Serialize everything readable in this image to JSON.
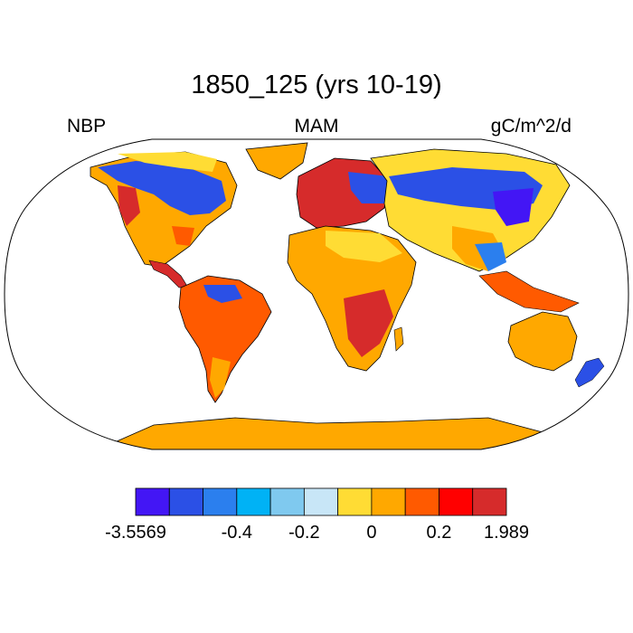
{
  "title": "1850_125 (yrs 10-19)",
  "left_label": "NBP",
  "center_label": "MAM",
  "right_label": "gC/m^2/d",
  "colorbar": {
    "colors": [
      "#4316f5",
      "#2b50e6",
      "#2b7fee",
      "#00b2f5",
      "#7fc9ef",
      "#c8e6f7",
      "#ffdc34",
      "#ffa800",
      "#ff5a00",
      "#ff0000",
      "#d62b2b"
    ],
    "tick_labels": [
      "-3.5569",
      "-0.4",
      "-0.2",
      "0",
      "0.2",
      "1.989"
    ],
    "tick_box_boundaries": [
      0,
      3,
      5,
      7,
      9,
      11
    ]
  },
  "map": {
    "ocean_color": "#ffffff",
    "projection": "Robinson"
  }
}
